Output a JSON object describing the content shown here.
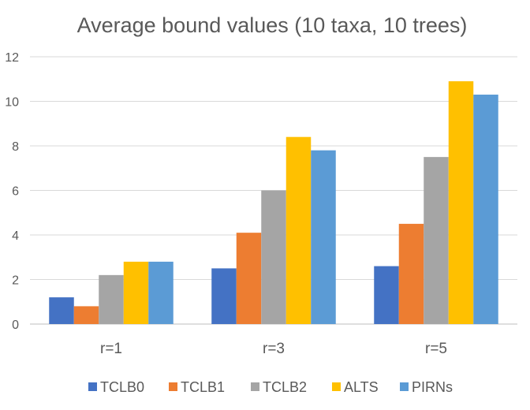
{
  "chart_data": {
    "type": "bar",
    "title": "Average bound values (10 taxa, 10 trees)",
    "categories": [
      "r=1",
      "r=3",
      "r=5"
    ],
    "series": [
      {
        "name": "TCLB0",
        "color": "#4472C4",
        "values": [
          1.2,
          2.5,
          2.6
        ]
      },
      {
        "name": "TCLB1",
        "color": "#ED7D31",
        "values": [
          0.8,
          4.1,
          4.5
        ]
      },
      {
        "name": "TCLB2",
        "color": "#A5A5A5",
        "values": [
          2.2,
          6.0,
          7.5
        ]
      },
      {
        "name": "ALTS",
        "color": "#FFC000",
        "values": [
          2.8,
          8.4,
          10.9
        ]
      },
      {
        "name": "PIRNs",
        "color": "#5B9BD5",
        "values": [
          2.8,
          7.8,
          10.3
        ]
      }
    ],
    "yticks": [
      "0",
      "2",
      "4",
      "6",
      "8",
      "10",
      "12"
    ],
    "ylim": [
      0,
      12
    ],
    "xlabel": "",
    "ylabel": "",
    "grid": true,
    "legend": "bottom"
  }
}
